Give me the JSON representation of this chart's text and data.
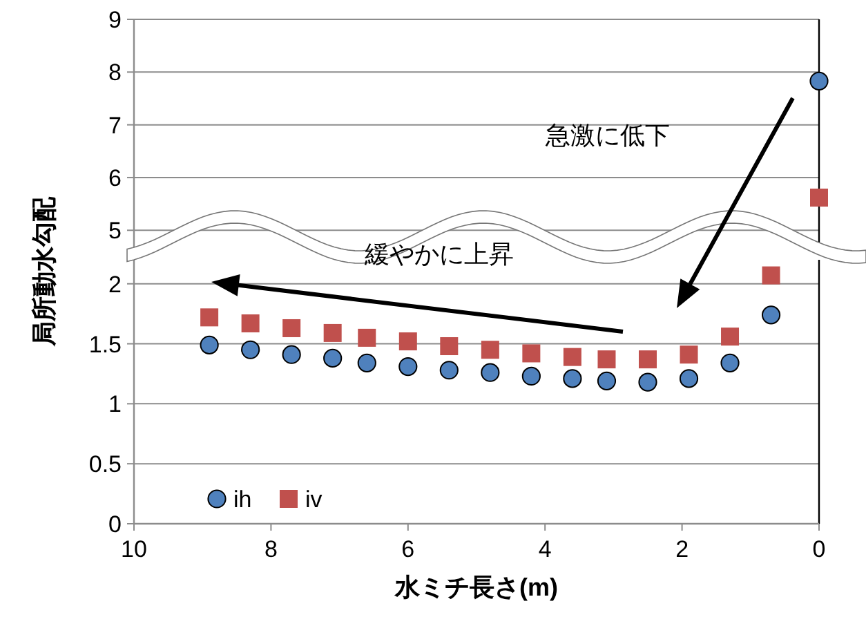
{
  "chart_data": [
    {
      "type": "scatter",
      "xlim": [
        10,
        0
      ],
      "ylim": [
        4.65,
        9
      ],
      "yticks": [
        5,
        6,
        7,
        8,
        9
      ],
      "tick_labels": "y",
      "grid": "y",
      "annotations": [
        "急激に低下"
      ],
      "series": [
        {
          "color": "#4f81bd",
          "marker": "circle",
          "x": [
            0
          ],
          "values": [
            7.83
          ]
        },
        {
          "color": "#c0504d",
          "marker": "square",
          "x": [
            0
          ],
          "values": [
            5.62
          ]
        }
      ]
    },
    {
      "type": "scatter",
      "xlim": [
        10,
        0
      ],
      "xticks": [
        10,
        8,
        6,
        4,
        2,
        0
      ],
      "ylim": [
        0,
        2.2
      ],
      "yticks": [
        0,
        0.5,
        1,
        1.5,
        2
      ],
      "grid": "y",
      "legend": "bottom left",
      "xlabel": "水ミチ長さ(m)",
      "ylabel": "局所動水勾配",
      "annotations": [
        "緩やかに上昇"
      ],
      "series": [
        {
          "name": "ih",
          "color": "#4f81bd",
          "marker": "circle",
          "x": [
            8.9,
            8.3,
            7.7,
            7.1,
            6.6,
            6.0,
            5.4,
            4.8,
            4.2,
            3.6,
            3.1,
            2.5,
            1.9,
            1.3,
            0.7
          ],
          "values": [
            1.49,
            1.45,
            1.41,
            1.38,
            1.34,
            1.31,
            1.28,
            1.26,
            1.23,
            1.21,
            1.19,
            1.18,
            1.21,
            1.34,
            1.74
          ]
        },
        {
          "name": "iv",
          "color": "#c0504d",
          "marker": "square",
          "x": [
            8.9,
            8.3,
            7.7,
            7.1,
            6.6,
            6.0,
            5.4,
            4.8,
            4.2,
            3.6,
            3.1,
            2.5,
            1.9,
            1.3,
            0.7
          ],
          "values": [
            1.72,
            1.67,
            1.63,
            1.59,
            1.55,
            1.52,
            1.48,
            1.45,
            1.42,
            1.39,
            1.37,
            1.37,
            1.41,
            1.56,
            2.07
          ]
        }
      ]
    }
  ]
}
